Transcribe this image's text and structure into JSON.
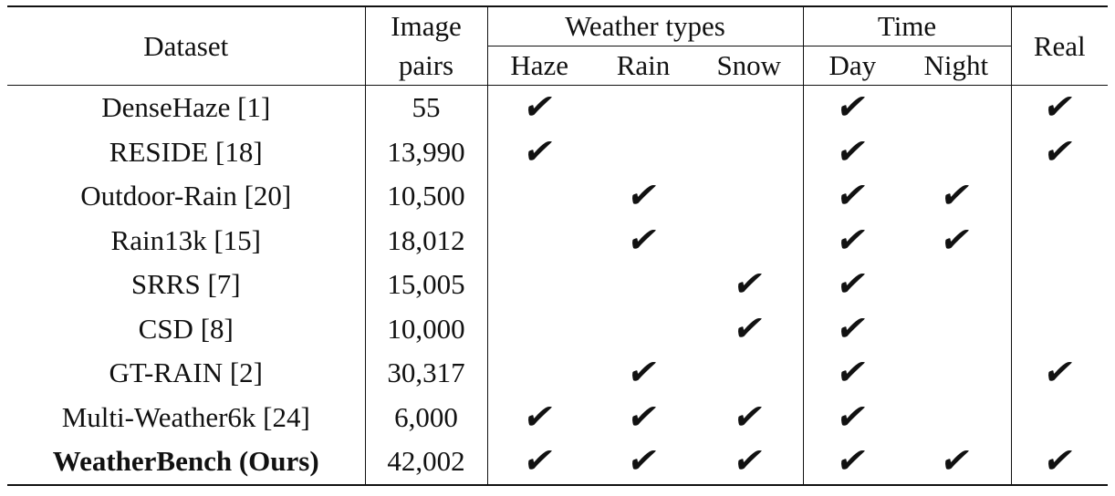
{
  "header": {
    "dataset": "Dataset",
    "image_pairs_line1": "Image",
    "image_pairs_line2": "pairs",
    "weather_types": "Weather types",
    "haze": "Haze",
    "rain": "Rain",
    "snow": "Snow",
    "time": "Time",
    "day": "Day",
    "night": "Night",
    "real": "Real"
  },
  "check_symbol": "✔",
  "rows": [
    {
      "dataset": "DenseHaze [1]",
      "pairs": "55",
      "haze": true,
      "rain": false,
      "snow": false,
      "day": true,
      "night": false,
      "real": true,
      "bold": false
    },
    {
      "dataset": "RESIDE [18]",
      "pairs": "13,990",
      "haze": true,
      "rain": false,
      "snow": false,
      "day": true,
      "night": false,
      "real": true,
      "bold": false
    },
    {
      "dataset": "Outdoor-Rain [20]",
      "pairs": "10,500",
      "haze": false,
      "rain": true,
      "snow": false,
      "day": true,
      "night": true,
      "real": false,
      "bold": false
    },
    {
      "dataset": "Rain13k [15]",
      "pairs": "18,012",
      "haze": false,
      "rain": true,
      "snow": false,
      "day": true,
      "night": true,
      "real": false,
      "bold": false
    },
    {
      "dataset": "SRRS [7]",
      "pairs": "15,005",
      "haze": false,
      "rain": false,
      "snow": true,
      "day": true,
      "night": false,
      "real": false,
      "bold": false
    },
    {
      "dataset": "CSD [8]",
      "pairs": "10,000",
      "haze": false,
      "rain": false,
      "snow": true,
      "day": true,
      "night": false,
      "real": false,
      "bold": false
    },
    {
      "dataset": "GT-RAIN [2]",
      "pairs": "30,317",
      "haze": false,
      "rain": true,
      "snow": false,
      "day": true,
      "night": false,
      "real": true,
      "bold": false
    },
    {
      "dataset": "Multi-Weather6k [24]",
      "pairs": "6,000",
      "haze": true,
      "rain": true,
      "snow": true,
      "day": true,
      "night": false,
      "real": false,
      "bold": false
    },
    {
      "dataset": "WeatherBench (Ours)",
      "pairs": "42,002",
      "haze": true,
      "rain": true,
      "snow": true,
      "day": true,
      "night": true,
      "real": true,
      "bold": true
    }
  ]
}
